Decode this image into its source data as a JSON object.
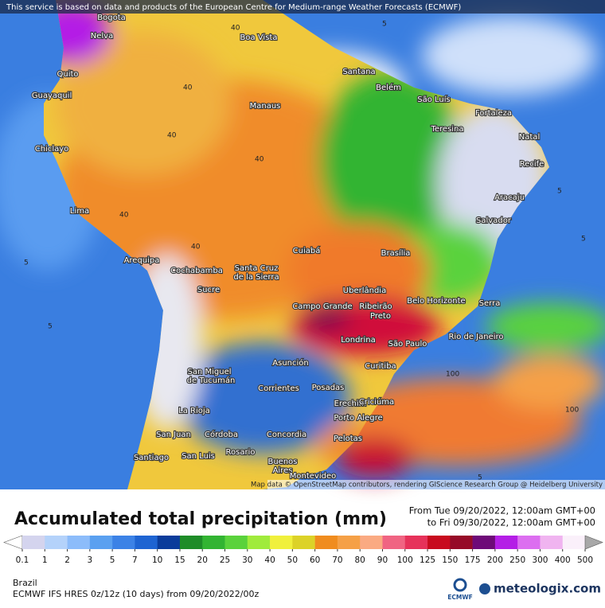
{
  "header": {
    "notice": "This service is based on data and products of the European Centre for Medium-range Weather Forecasts (ECMWF)"
  },
  "map": {
    "credit": "Map data © OpenStreetMap contributors, rendering GIScience Research Group @ Heidelberg University",
    "cities": [
      "Bogota",
      "Nelva",
      "Quito",
      "Guayaquil",
      "Chiclayo",
      "Lima",
      "Arequipa",
      "Cochabamba",
      "Sucre",
      "Santa Cruz",
      "de la Sierra",
      "Boa Vista",
      "Manaus",
      "Santana",
      "Belém",
      "São Luís",
      "Fortaleza",
      "Teresina",
      "Natal",
      "Recife",
      "Aracaju",
      "Salvador",
      "Cuiabá",
      "Brasília",
      "Uberlândia",
      "Campo Grande",
      "Ribeirão",
      "Preto",
      "Belo Horizonte",
      "Serra",
      "Rio de Janeiro",
      "São Paulo",
      "Londrina",
      "Curitiba",
      "Asunción",
      "San Miguel",
      "de Tucumán",
      "Corrientes",
      "Posadas",
      "Erechim",
      "Criciúma",
      "La Rioja",
      "Porto Alegre",
      "Córdoba",
      "San Juan",
      "Concordia",
      "Pelotas",
      "Santiago",
      "San Luis",
      "Rosario",
      "Buenos",
      "Aires",
      "Montevideo"
    ],
    "contour_labels": [
      "40",
      "40",
      "40",
      "40",
      "40",
      "40",
      "5",
      "5",
      "5",
      "5",
      "5",
      "5",
      "100",
      "100"
    ]
  },
  "legend": {
    "title": "Accumulated total precipitation (mm)",
    "period_from": "From Tue 09/20/2022, 12:00am GMT+00",
    "period_to": "to Fri 09/30/2022, 12:00am GMT+00",
    "levels": [
      0.1,
      1,
      2,
      3,
      5,
      7,
      10,
      15,
      20,
      25,
      30,
      40,
      50,
      60,
      70,
      80,
      90,
      100,
      125,
      150,
      175,
      200,
      250,
      300,
      400,
      500
    ],
    "under_color": "#ffffff",
    "colors": [
      "#d4d4ee",
      "#b4d2fa",
      "#8cbcfa",
      "#5aa0f0",
      "#3c82e6",
      "#1e64d2",
      "#0a3c9b",
      "#1e8c28",
      "#32b432",
      "#5ad23c",
      "#a0eb3c",
      "#f0f03c",
      "#dcd228",
      "#f08c1e",
      "#f5a046",
      "#faaa82",
      "#f06482",
      "#e6325a",
      "#c80a1e",
      "#960a28",
      "#6e0a78",
      "#b41ee6",
      "#dc6ef0",
      "#f0b4f0",
      "#faf0fa"
    ],
    "over_color": "#a8a8a8"
  },
  "footer": {
    "region": "Brazil",
    "model": "ECMWF IFS HRES 0z/12z (10 days) from 09/20/2022/00z",
    "ecmwf_logo": "ECMWF",
    "brand": "meteologix.com"
  }
}
